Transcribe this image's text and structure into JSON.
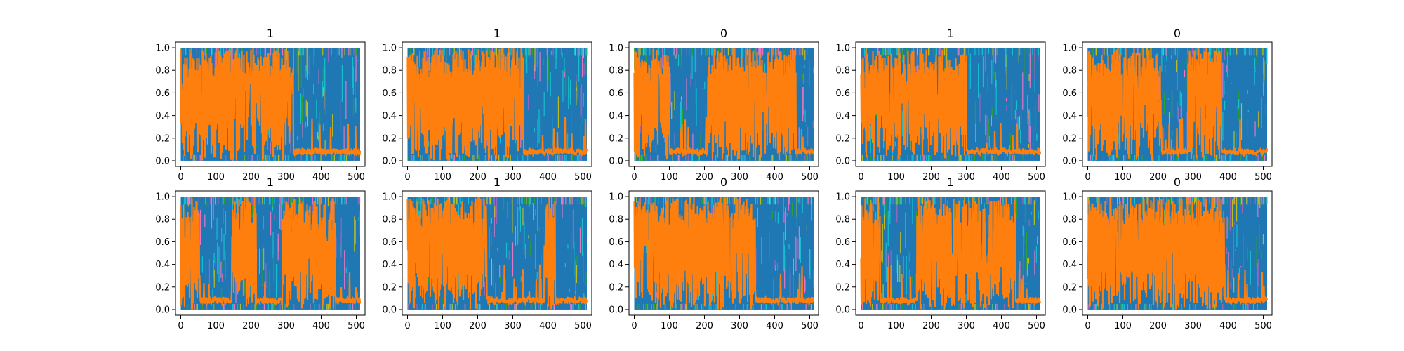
{
  "chart_data": {
    "type": "line",
    "layout": "2x5 grid of subplots",
    "xlim": [
      -15,
      525
    ],
    "ylim": [
      -0.05,
      1.05
    ],
    "xticks": [
      0,
      100,
      200,
      300,
      400,
      500
    ],
    "yticks": [
      0.0,
      0.2,
      0.4,
      0.6,
      0.8,
      1.0
    ],
    "colors": {
      "blue": "#1f77b4",
      "orange": "#ff7f0e",
      "cyan": "#17becf",
      "olive": "#bcbd22",
      "green": "#2ca02c",
      "purple": "#9467bd",
      "pink": "#e377c2"
    },
    "subplots": [
      {
        "title": "1",
        "orange_high": [
          [
            0,
            320
          ]
        ]
      },
      {
        "title": "1",
        "orange_high": [
          [
            0,
            330
          ]
        ]
      },
      {
        "title": "0",
        "orange_high": [
          [
            0,
            100
          ],
          [
            210,
            460
          ]
        ]
      },
      {
        "title": "1",
        "orange_high": [
          [
            0,
            300
          ]
        ]
      },
      {
        "title": "0",
        "orange_high": [
          [
            0,
            210
          ],
          [
            285,
            380
          ]
        ]
      },
      {
        "title": "1",
        "orange_high": [
          [
            0,
            55
          ],
          [
            145,
            215
          ],
          [
            290,
            440
          ]
        ]
      },
      {
        "title": "1",
        "orange_high": [
          [
            0,
            225
          ],
          [
            390,
            420
          ]
        ]
      },
      {
        "title": "0",
        "orange_high": [
          [
            0,
            345
          ]
        ]
      },
      {
        "title": "1",
        "orange_high": [
          [
            0,
            55
          ],
          [
            160,
            440
          ]
        ]
      },
      {
        "title": "0",
        "orange_high": [
          [
            0,
            390
          ]
        ]
      }
    ]
  }
}
